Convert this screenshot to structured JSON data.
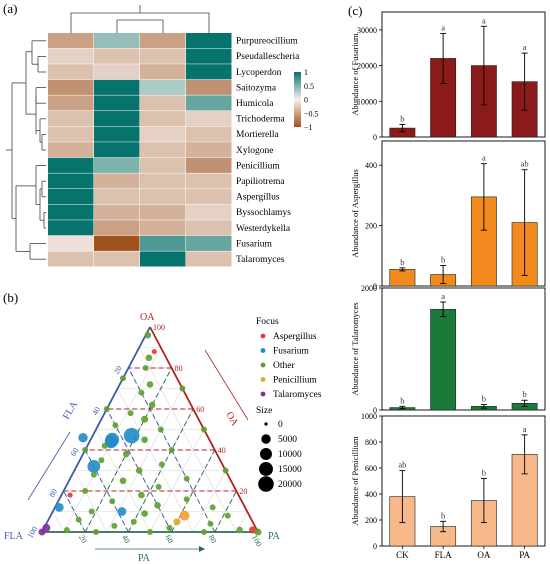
{
  "panels": {
    "a": "(a)",
    "b": "(b)",
    "c": "(c)"
  },
  "chart_data": [
    {
      "type": "heatmap",
      "panel": "(a)",
      "rows": [
        "Purpureocillium",
        "Pseudallescheria",
        "Lycoperdon",
        "Saitozyma",
        "Humicola",
        "Trichoderma",
        "Mortierella",
        "Xylogone",
        "Penicillium",
        "Papiliotrema",
        "Aspergillus",
        "Byssochlamys",
        "Westerdykella",
        "Fusarium",
        "Talaromyces"
      ],
      "columns": [
        "CK",
        "FLA",
        "OA",
        "PA"
      ],
      "values": [
        [
          -0.5,
          0.4,
          -0.5,
          1.0
        ],
        [
          -0.2,
          -0.3,
          -0.3,
          1.0
        ],
        [
          -0.3,
          -0.2,
          -0.4,
          1.0
        ],
        [
          -0.6,
          1.0,
          0.3,
          -0.6
        ],
        [
          -0.5,
          1.0,
          -0.3,
          0.6
        ],
        [
          -0.3,
          1.0,
          -0.3,
          -0.2
        ],
        [
          -0.3,
          1.0,
          -0.2,
          -0.3
        ],
        [
          -0.4,
          1.0,
          -0.3,
          -0.4
        ],
        [
          1.0,
          0.5,
          -0.3,
          -0.6
        ],
        [
          1.0,
          -0.4,
          -0.3,
          -0.3
        ],
        [
          1.0,
          -0.3,
          -0.3,
          -0.3
        ],
        [
          1.0,
          -0.4,
          -0.4,
          -0.2
        ],
        [
          1.0,
          -0.5,
          -0.4,
          -0.3
        ],
        [
          -0.1,
          -1.0,
          0.7,
          0.6
        ],
        [
          -0.3,
          -0.3,
          1.0,
          -0.3
        ]
      ],
      "legend_ticks": [
        "1",
        "0.5",
        "0",
        "−0.5",
        "−1"
      ],
      "color_low": "#a0521d",
      "color_mid": "#f5f0ee",
      "color_high": "#06736c"
    },
    {
      "type": "scatter",
      "subtype": "ternary",
      "panel": "(b)",
      "vertices": {
        "top": "OA",
        "left": "FLA",
        "right": "PA"
      },
      "axis_ticks": [
        "20",
        "40",
        "60",
        "80",
        "100"
      ],
      "legend_focus_title": "Focus",
      "legend_focus": [
        {
          "name": "Aspergillus",
          "color": "#e53935"
        },
        {
          "name": "Fusarium",
          "color": "#1f8bc6"
        },
        {
          "name": "Other",
          "color": "#5e9e2f"
        },
        {
          "name": "Penicillium",
          "color": "#f0a030"
        },
        {
          "name": "Talaromyces",
          "color": "#7b2fa0"
        }
      ],
      "legend_size_title": "Size",
      "legend_size": [
        "0",
        "5000",
        "10000",
        "15000",
        "20000"
      ],
      "points": [
        {
          "oa": 47,
          "fla": 35,
          "focus": "Fusarium",
          "size": 20000
        },
        {
          "oa": 45,
          "fla": 45,
          "focus": "Fusarium",
          "size": 15000
        },
        {
          "oa": 44,
          "fla": 46,
          "focus": "Fusarium",
          "size": 12000
        },
        {
          "oa": 32,
          "fla": 60,
          "focus": "Fusarium",
          "size": 12000
        },
        {
          "oa": 46,
          "fla": 58,
          "focus": "Fusarium",
          "size": 5000
        },
        {
          "oa": 12,
          "fla": 86,
          "focus": "Fusarium",
          "size": 4000
        },
        {
          "oa": 10,
          "fla": 58,
          "focus": "Fusarium",
          "size": 4000
        },
        {
          "oa": 8,
          "fla": 30,
          "focus": "Penicillium",
          "size": 6000
        },
        {
          "oa": 5,
          "fla": 35,
          "focus": "Penicillium",
          "size": 2000
        },
        {
          "oa": 2,
          "fla": 97,
          "focus": "Talaromyces",
          "size": 3000
        },
        {
          "oa": 0,
          "fla": 100,
          "focus": "Talaromyces",
          "size": 2000
        },
        {
          "oa": 1,
          "fla": 2,
          "focus": "Aspergillus",
          "size": 2000
        },
        {
          "oa": 88,
          "fla": 4,
          "focus": "Aspergillus",
          "size": 500
        },
        {
          "oa": 18,
          "fla": 78,
          "focus": "Aspergillus",
          "size": 500
        },
        {
          "oa": 96,
          "fla": 3,
          "focus": "Other",
          "size": 1500
        },
        {
          "oa": 85,
          "fla": 8,
          "focus": "Other",
          "size": 1500
        },
        {
          "oa": 80,
          "fla": 12,
          "focus": "Other",
          "size": 1000
        },
        {
          "oa": 72,
          "fla": 14,
          "focus": "Other",
          "size": 1500
        },
        {
          "oa": 68,
          "fla": 20,
          "focus": "Other",
          "size": 1000
        },
        {
          "oa": 62,
          "fla": 18,
          "focus": "Other",
          "size": 1500
        },
        {
          "oa": 58,
          "fla": 30,
          "focus": "Other",
          "size": 1000
        },
        {
          "oa": 55,
          "fla": 25,
          "focus": "Other",
          "size": 2000
        },
        {
          "oa": 52,
          "fla": 40,
          "focus": "Other",
          "size": 1000
        },
        {
          "oa": 50,
          "fla": 20,
          "focus": "Other",
          "size": 1000
        },
        {
          "oa": 45,
          "fla": 30,
          "focus": "Other",
          "size": 1500
        },
        {
          "oa": 42,
          "fla": 50,
          "focus": "Other",
          "size": 1000
        },
        {
          "oa": 40,
          "fla": 20,
          "focus": "Other",
          "size": 1000
        },
        {
          "oa": 38,
          "fla": 42,
          "focus": "Other",
          "size": 1500
        },
        {
          "oa": 35,
          "fla": 55,
          "focus": "Other",
          "size": 1000
        },
        {
          "oa": 33,
          "fla": 28,
          "focus": "Other",
          "size": 1000
        },
        {
          "oa": 30,
          "fla": 40,
          "focus": "Other",
          "size": 1500
        },
        {
          "oa": 28,
          "fla": 62,
          "focus": "Other",
          "size": 1000
        },
        {
          "oa": 26,
          "fla": 20,
          "focus": "Other",
          "size": 1000
        },
        {
          "oa": 25,
          "fla": 50,
          "focus": "Other",
          "size": 1500
        },
        {
          "oa": 22,
          "fla": 35,
          "focus": "Other",
          "size": 1000
        },
        {
          "oa": 20,
          "fla": 70,
          "focus": "Other",
          "size": 1000
        },
        {
          "oa": 18,
          "fla": 45,
          "focus": "Other",
          "size": 1500
        },
        {
          "oa": 16,
          "fla": 25,
          "focus": "Other",
          "size": 1000
        },
        {
          "oa": 15,
          "fla": 60,
          "focus": "Other",
          "size": 1000
        },
        {
          "oa": 13,
          "fla": 40,
          "focus": "Other",
          "size": 1500
        },
        {
          "oa": 12,
          "fla": 15,
          "focus": "Other",
          "size": 1000
        },
        {
          "oa": 10,
          "fla": 72,
          "focus": "Other",
          "size": 1000
        },
        {
          "oa": 9,
          "fla": 48,
          "focus": "Other",
          "size": 1500
        },
        {
          "oa": 8,
          "fla": 10,
          "focus": "Other",
          "size": 1000
        },
        {
          "oa": 6,
          "fla": 80,
          "focus": "Other",
          "size": 1000
        },
        {
          "oa": 5,
          "fla": 55,
          "focus": "Other",
          "size": 1000
        },
        {
          "oa": 4,
          "fla": 20,
          "focus": "Other",
          "size": 1000
        },
        {
          "oa": 3,
          "fla": 65,
          "focus": "Other",
          "size": 1000
        },
        {
          "oa": 2,
          "fla": 40,
          "focus": "Other",
          "size": 1000
        },
        {
          "oa": 1,
          "fla": 8,
          "focus": "Other",
          "size": 1500
        },
        {
          "oa": 1,
          "fla": 88,
          "focus": "Other",
          "size": 1000
        },
        {
          "oa": 0,
          "fla": 50,
          "focus": "Other",
          "size": 1000
        },
        {
          "oa": 0,
          "fla": 25,
          "focus": "Other",
          "size": 1000
        },
        {
          "oa": 0,
          "fla": 75,
          "focus": "Other",
          "size": 1000
        },
        {
          "oa": 0,
          "fla": 0,
          "focus": "Other",
          "size": 2000
        },
        {
          "oa": 30,
          "fla": 0,
          "focus": "Other",
          "size": 1000
        },
        {
          "oa": 50,
          "fla": 0,
          "focus": "Other",
          "size": 1000
        },
        {
          "oa": 70,
          "fla": 0,
          "focus": "Other",
          "size": 1000
        },
        {
          "oa": 40,
          "fla": 60,
          "focus": "Other",
          "size": 1000
        },
        {
          "oa": 60,
          "fla": 40,
          "focus": "Other",
          "size": 1000
        },
        {
          "oa": 75,
          "fla": 25,
          "focus": "Other",
          "size": 1000
        }
      ]
    },
    {
      "type": "bar",
      "panel": "(c)",
      "categories": [
        "CK",
        "FLA",
        "OA",
        "PA"
      ],
      "subplots": [
        {
          "ylabel": "Abundance of Fusarium",
          "color": "#8b1a1a",
          "ylim": [
            0,
            35000
          ],
          "ticks": [
            "0",
            "10000",
            "20000",
            "30000"
          ],
          "values": [
            2500,
            22000,
            20000,
            15500
          ],
          "errors": [
            1000,
            7000,
            11000,
            8000
          ],
          "letters": [
            "b",
            "a",
            "a",
            "a"
          ]
        },
        {
          "ylabel": "Abundance of Aspergillus",
          "color": "#f28a1e",
          "ylim": [
            0,
            480
          ],
          "ticks": [
            "0",
            "200",
            "400"
          ],
          "values": [
            55,
            38,
            295,
            210
          ],
          "errors": [
            5,
            30,
            110,
            175
          ],
          "letters": [
            "b",
            "b",
            "a",
            "ab"
          ]
        },
        {
          "ylabel": "Abundance of Talaromyces",
          "color": "#1b7a3a",
          "ylim": [
            0,
            2000
          ],
          "ticks": [
            "0",
            "2000"
          ],
          "values": [
            40,
            1650,
            60,
            110
          ],
          "errors": [
            20,
            120,
            30,
            50
          ],
          "letters": [
            "b",
            "a",
            "b",
            "b"
          ]
        },
        {
          "ylabel": "Abundance of Penicillium",
          "color": "#f7b98a",
          "ylim": [
            0,
            1000
          ],
          "ticks": [
            "0",
            "200",
            "400",
            "600",
            "800",
            "1000"
          ],
          "values": [
            380,
            150,
            350,
            705
          ],
          "errors": [
            200,
            40,
            170,
            150
          ],
          "letters": [
            "ab",
            "b",
            "b",
            "a"
          ]
        }
      ]
    }
  ]
}
